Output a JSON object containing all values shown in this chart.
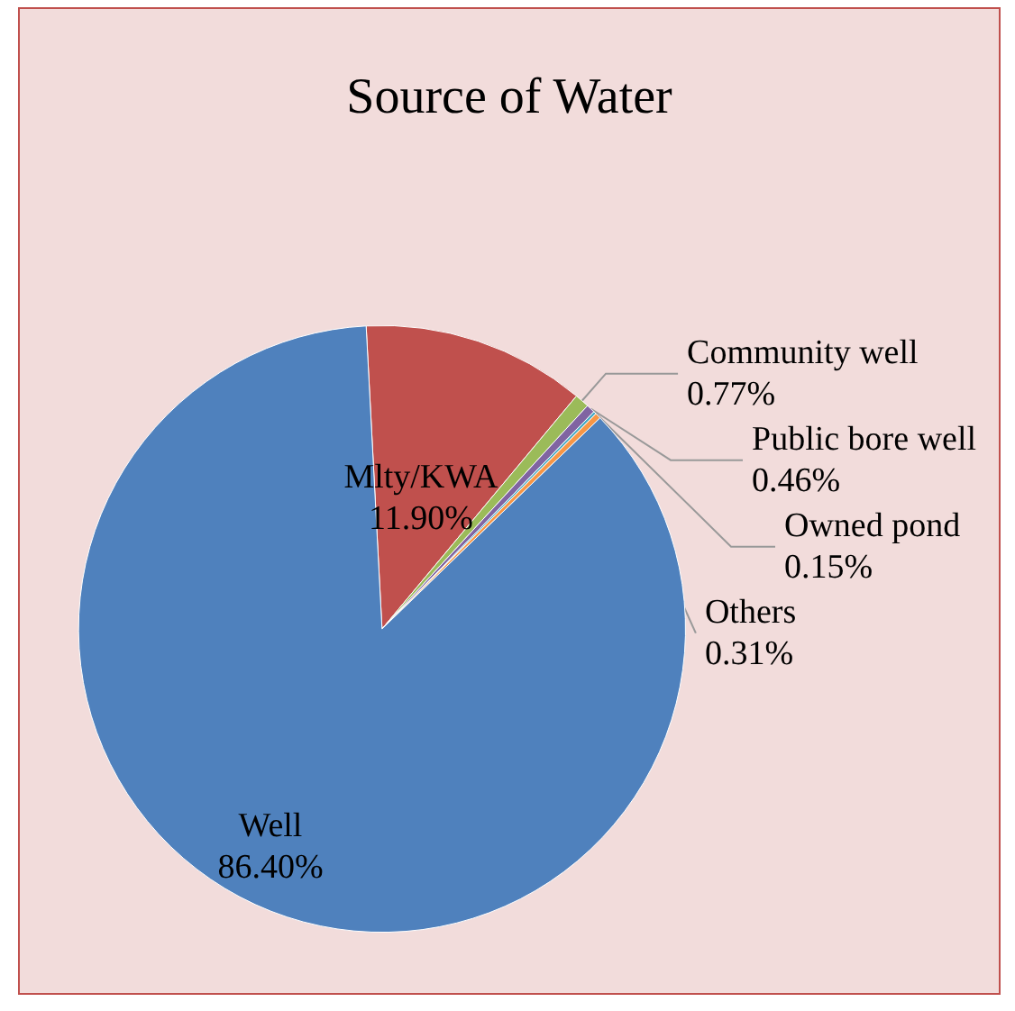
{
  "chart_data": {
    "type": "pie",
    "title": "Source of Water",
    "categories": [
      "Mlty/KWA",
      "Community well",
      "Public bore well",
      "Owned pond",
      "Others",
      "Well"
    ],
    "values": [
      11.9,
      0.77,
      0.46,
      0.15,
      0.31,
      86.4
    ],
    "value_labels": [
      "11.90%",
      "0.77%",
      "0.46%",
      "0.15%",
      "0.31%",
      "86.40%"
    ],
    "colors": [
      "#c0504d",
      "#9bbb59",
      "#8064a2",
      "#4bacc6",
      "#f79646",
      "#4f81bd"
    ],
    "legend": false
  }
}
